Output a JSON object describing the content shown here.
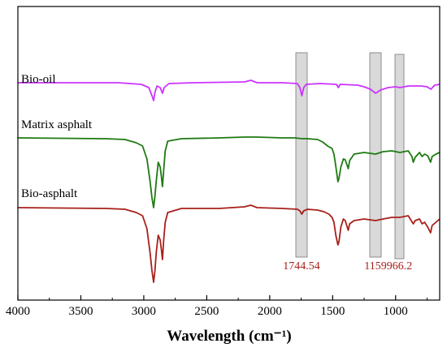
{
  "chart_data": {
    "type": "line",
    "title": "",
    "xlabel": "Wavelength (cm⁻¹)",
    "ylabel": "",
    "xlim": [
      4000,
      650
    ],
    "x_reversed": true,
    "x_ticks": [
      4000,
      3500,
      3000,
      2500,
      2000,
      1500,
      1000
    ],
    "x_tick_labels": [
      "4000",
      "3500",
      "3000",
      "2500",
      "2000",
      "1500",
      "1000"
    ],
    "y_ticks_shown": false,
    "grid": false,
    "series": [
      {
        "name": "Bio-oil",
        "color": "#cc33ff",
        "baseline": 102,
        "points": [
          [
            4000,
            102
          ],
          [
            3200,
            102
          ],
          [
            3020,
            104
          ],
          [
            2960,
            108
          ],
          [
            2935,
            118
          ],
          [
            2922,
            124
          ],
          [
            2912,
            114
          ],
          [
            2895,
            106
          ],
          [
            2870,
            108
          ],
          [
            2852,
            115
          ],
          [
            2838,
            108
          ],
          [
            2800,
            103
          ],
          [
            2600,
            102
          ],
          [
            2200,
            101
          ],
          [
            2150,
            99
          ],
          [
            2100,
            102
          ],
          [
            1900,
            102
          ],
          [
            1780,
            103
          ],
          [
            1760,
            108
          ],
          [
            1744.54,
            118
          ],
          [
            1730,
            108
          ],
          [
            1710,
            104
          ],
          [
            1600,
            103
          ],
          [
            1470,
            104
          ],
          [
            1455,
            108
          ],
          [
            1440,
            104
          ],
          [
            1300,
            105
          ],
          [
            1250,
            107
          ],
          [
            1200,
            110
          ],
          [
            1159,
            115
          ],
          [
            1120,
            111
          ],
          [
            1060,
            108
          ],
          [
            1000,
            107
          ],
          [
            966.2,
            108
          ],
          [
            900,
            106
          ],
          [
            800,
            106
          ],
          [
            750,
            107
          ],
          [
            720,
            110
          ],
          [
            690,
            105
          ],
          [
            650,
            104
          ]
        ]
      },
      {
        "name": "Matrix asphalt",
        "color": "#1e7a12",
        "baseline": 170,
        "points": [
          [
            4000,
            170
          ],
          [
            3300,
            171
          ],
          [
            3150,
            172
          ],
          [
            3060,
            176
          ],
          [
            3010,
            180
          ],
          [
            2975,
            196
          ],
          [
            2950,
            224
          ],
          [
            2935,
            244
          ],
          [
            2922,
            256
          ],
          [
            2912,
            242
          ],
          [
            2900,
            222
          ],
          [
            2885,
            200
          ],
          [
            2870,
            206
          ],
          [
            2860,
            218
          ],
          [
            2852,
            230
          ],
          [
            2842,
            210
          ],
          [
            2830,
            186
          ],
          [
            2810,
            174
          ],
          [
            2700,
            171
          ],
          [
            2400,
            170
          ],
          [
            2200,
            169
          ],
          [
            2100,
            169
          ],
          [
            1900,
            170
          ],
          [
            1800,
            170
          ],
          [
            1744.54,
            171
          ],
          [
            1700,
            171
          ],
          [
            1620,
            172
          ],
          [
            1580,
            175
          ],
          [
            1540,
            180
          ],
          [
            1505,
            183
          ],
          [
            1490,
            190
          ],
          [
            1475,
            205
          ],
          [
            1458,
            224
          ],
          [
            1450,
            220
          ],
          [
            1435,
            206
          ],
          [
            1415,
            196
          ],
          [
            1400,
            197
          ],
          [
            1376,
            208
          ],
          [
            1365,
            198
          ],
          [
            1330,
            190
          ],
          [
            1250,
            188
          ],
          [
            1159,
            190
          ],
          [
            1100,
            187
          ],
          [
            1030,
            186
          ],
          [
            966.2,
            188
          ],
          [
            900,
            186
          ],
          [
            870,
            193
          ],
          [
            860,
            200
          ],
          [
            845,
            194
          ],
          [
            810,
            188
          ],
          [
            790,
            193
          ],
          [
            770,
            190
          ],
          [
            745,
            192
          ],
          [
            722,
            200
          ],
          [
            710,
            193
          ],
          [
            680,
            190
          ],
          [
            650,
            188
          ]
        ]
      },
      {
        "name": "Bio-asphalt",
        "color": "#a8201a",
        "baseline": 256,
        "points": [
          [
            4000,
            256
          ],
          [
            3300,
            257
          ],
          [
            3150,
            258
          ],
          [
            3060,
            262
          ],
          [
            3010,
            266
          ],
          [
            2975,
            282
          ],
          [
            2950,
            312
          ],
          [
            2935,
            334
          ],
          [
            2922,
            348
          ],
          [
            2912,
            334
          ],
          [
            2900,
            310
          ],
          [
            2885,
            290
          ],
          [
            2870,
            296
          ],
          [
            2860,
            308
          ],
          [
            2852,
            320
          ],
          [
            2842,
            296
          ],
          [
            2830,
            274
          ],
          [
            2810,
            262
          ],
          [
            2700,
            257
          ],
          [
            2400,
            257
          ],
          [
            2200,
            255
          ],
          [
            2150,
            253
          ],
          [
            2100,
            256
          ],
          [
            1900,
            257
          ],
          [
            1780,
            258
          ],
          [
            1760,
            260
          ],
          [
            1744.54,
            264
          ],
          [
            1730,
            260
          ],
          [
            1700,
            258
          ],
          [
            1620,
            259
          ],
          [
            1570,
            261
          ],
          [
            1530,
            264
          ],
          [
            1505,
            268
          ],
          [
            1490,
            274
          ],
          [
            1475,
            290
          ],
          [
            1458,
            302
          ],
          [
            1450,
            298
          ],
          [
            1435,
            280
          ],
          [
            1415,
            270
          ],
          [
            1400,
            272
          ],
          [
            1376,
            284
          ],
          [
            1365,
            276
          ],
          [
            1330,
            272
          ],
          [
            1250,
            270
          ],
          [
            1159,
            272
          ],
          [
            1100,
            270
          ],
          [
            1030,
            268
          ],
          [
            966.2,
            268
          ],
          [
            900,
            266
          ],
          [
            860,
            276
          ],
          [
            845,
            272
          ],
          [
            810,
            270
          ],
          [
            790,
            276
          ],
          [
            770,
            274
          ],
          [
            745,
            280
          ],
          [
            722,
            287
          ],
          [
            710,
            278
          ],
          [
            680,
            274
          ],
          [
            650,
            270
          ]
        ]
      }
    ],
    "series_labels": [
      "Bio-oil",
      "Matrix asphalt",
      "Bio-asphalt"
    ],
    "highlight_bands": [
      {
        "center": 1744.54,
        "label": "1744.54",
        "color": "#a8201a"
      },
      {
        "center": 1159,
        "label": "1159",
        "color": "#a8201a"
      },
      {
        "center": 966.2,
        "label": "966.2",
        "color": "#a8201a"
      }
    ]
  }
}
